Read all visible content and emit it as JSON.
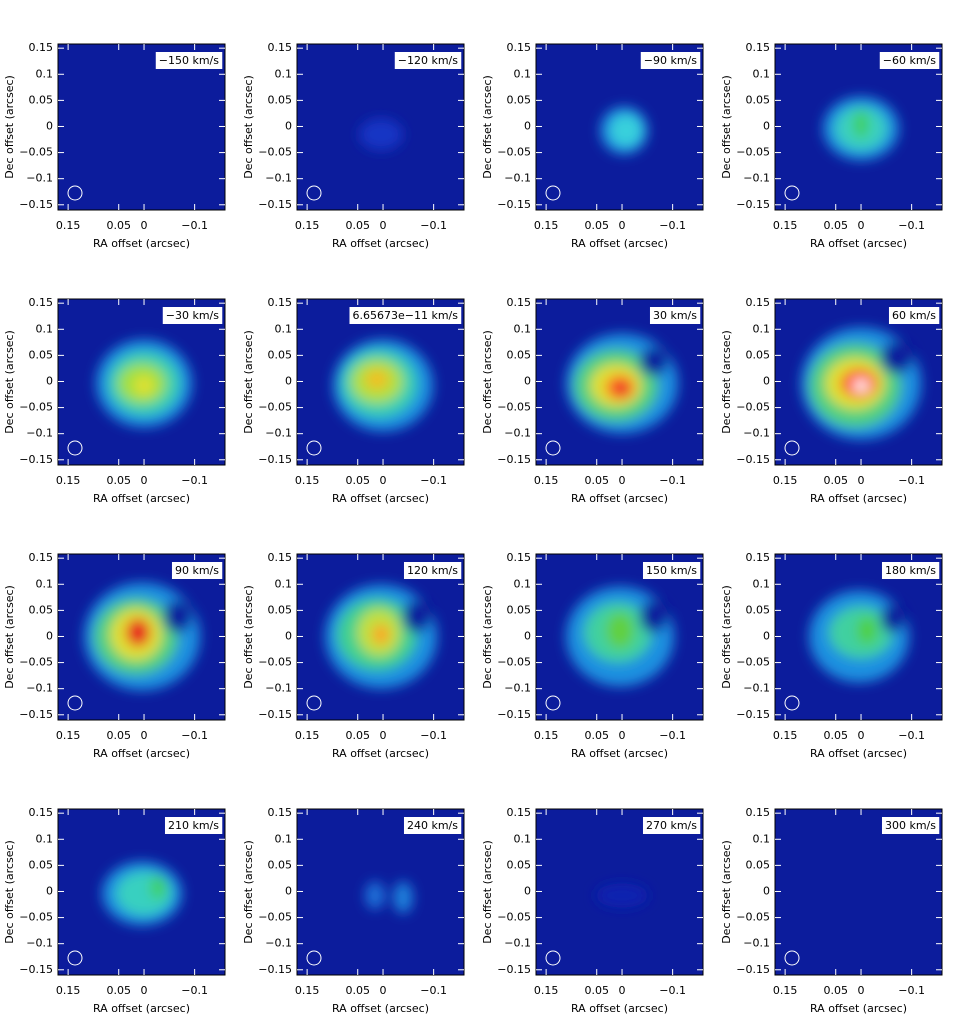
{
  "chart_data": [
    {
      "type": "channel-map",
      "label": "−150 km/s",
      "xlabel": "RA offset (arcsec)",
      "ylabel": "Dec offset (arcsec)",
      "xlim": [
        0.17,
        -0.16
      ],
      "ylim": [
        -0.16,
        0.158
      ],
      "xticks": [
        0.15,
        0.05,
        0,
        {
          "value": -0.1,
          "label": "−0.1"
        }
      ],
      "yticks": [
        0.15,
        0.1,
        0.05,
        0,
        {
          "value": -0.05,
          "label": "−0.05"
        },
        {
          "value": -0.1,
          "label": "−0.1"
        },
        {
          "value": -0.15,
          "label": "−0.15"
        }
      ]
    },
    {
      "type": "channel-map",
      "label": "−120 km/s",
      "xlabel": "RA offset (arcsec)",
      "ylabel": "Dec offset (arcsec)",
      "xlim": [
        0.17,
        -0.16
      ],
      "ylim": [
        -0.16,
        0.158
      ],
      "xticks": [
        0.15,
        0.05,
        0,
        {
          "value": -0.1,
          "label": "−0.1"
        }
      ],
      "yticks": [
        0.15,
        0.1,
        0.05,
        0,
        {
          "value": -0.05,
          "label": "−0.05"
        },
        {
          "value": -0.1,
          "label": "−0.1"
        },
        {
          "value": -0.15,
          "label": "−0.15"
        }
      ]
    },
    {
      "type": "channel-map",
      "label": "−90 km/s",
      "xlabel": "RA offset (arcsec)",
      "ylabel": "Dec offset (arcsec)",
      "xlim": [
        0.17,
        -0.16
      ],
      "ylim": [
        -0.16,
        0.158
      ],
      "xticks": [
        0.15,
        0.05,
        0,
        {
          "value": -0.1,
          "label": "−0.1"
        }
      ],
      "yticks": [
        0.15,
        0.1,
        0.05,
        0,
        {
          "value": -0.05,
          "label": "−0.05"
        },
        {
          "value": -0.1,
          "label": "−0.1"
        },
        {
          "value": -0.15,
          "label": "−0.15"
        }
      ]
    },
    {
      "type": "channel-map",
      "label": "−60 km/s",
      "xlabel": "RA offset (arcsec)",
      "ylabel": "Dec offset (arcsec)",
      "xlim": [
        0.17,
        -0.16
      ],
      "ylim": [
        -0.16,
        0.158
      ],
      "xticks": [
        0.15,
        0.05,
        0,
        {
          "value": -0.1,
          "label": "−0.1"
        }
      ],
      "yticks": [
        0.15,
        0.1,
        0.05,
        0,
        {
          "value": -0.05,
          "label": "−0.05"
        },
        {
          "value": -0.1,
          "label": "−0.1"
        },
        {
          "value": -0.15,
          "label": "−0.15"
        }
      ]
    },
    {
      "type": "channel-map",
      "label": "−30 km/s",
      "xlabel": "RA offset (arcsec)",
      "ylabel": "Dec offset (arcsec)",
      "xlim": [
        0.17,
        -0.16
      ],
      "ylim": [
        -0.16,
        0.158
      ],
      "xticks": [
        0.15,
        0.05,
        0,
        {
          "value": -0.1,
          "label": "−0.1"
        }
      ],
      "yticks": [
        0.15,
        0.1,
        0.05,
        0,
        {
          "value": -0.05,
          "label": "−0.05"
        },
        {
          "value": -0.1,
          "label": "−0.1"
        },
        {
          "value": -0.15,
          "label": "−0.15"
        }
      ]
    },
    {
      "type": "channel-map",
      "label": "6.65673e−11 km/s",
      "xlabel": "RA offset (arcsec)",
      "ylabel": "Dec offset (arcsec)",
      "xlim": [
        0.17,
        -0.16
      ],
      "ylim": [
        -0.16,
        0.158
      ],
      "xticks": [
        0.15,
        0.05,
        0,
        {
          "value": -0.1,
          "label": "−0.1"
        }
      ],
      "yticks": [
        0.15,
        0.1,
        0.05,
        0,
        {
          "value": -0.05,
          "label": "−0.05"
        },
        {
          "value": -0.1,
          "label": "−0.1"
        },
        {
          "value": -0.15,
          "label": "−0.15"
        }
      ]
    },
    {
      "type": "channel-map",
      "label": "30 km/s",
      "xlabel": "RA offset (arcsec)",
      "ylabel": "Dec offset (arcsec)",
      "xlim": [
        0.17,
        -0.16
      ],
      "ylim": [
        -0.16,
        0.158
      ],
      "xticks": [
        0.15,
        0.05,
        0,
        {
          "value": -0.1,
          "label": "−0.1"
        }
      ],
      "yticks": [
        0.15,
        0.1,
        0.05,
        0,
        {
          "value": -0.05,
          "label": "−0.05"
        },
        {
          "value": -0.1,
          "label": "−0.1"
        },
        {
          "value": -0.15,
          "label": "−0.15"
        }
      ]
    },
    {
      "type": "channel-map",
      "label": "60 km/s",
      "xlabel": "RA offset (arcsec)",
      "ylabel": "Dec offset (arcsec)",
      "xlim": [
        0.17,
        -0.16
      ],
      "ylim": [
        -0.16,
        0.158
      ],
      "xticks": [
        0.15,
        0.05,
        0,
        {
          "value": -0.1,
          "label": "−0.1"
        }
      ],
      "yticks": [
        0.15,
        0.1,
        0.05,
        0,
        {
          "value": -0.05,
          "label": "−0.05"
        },
        {
          "value": -0.1,
          "label": "−0.1"
        },
        {
          "value": -0.15,
          "label": "−0.15"
        }
      ]
    },
    {
      "type": "channel-map",
      "label": "90 km/s",
      "xlabel": "RA offset (arcsec)",
      "ylabel": "Dec offset (arcsec)",
      "xlim": [
        0.17,
        -0.16
      ],
      "ylim": [
        -0.16,
        0.158
      ],
      "xticks": [
        0.15,
        0.05,
        0,
        {
          "value": -0.1,
          "label": "−0.1"
        }
      ],
      "yticks": [
        0.15,
        0.1,
        0.05,
        0,
        {
          "value": -0.05,
          "label": "−0.05"
        },
        {
          "value": -0.1,
          "label": "−0.1"
        },
        {
          "value": -0.15,
          "label": "−0.15"
        }
      ]
    },
    {
      "type": "channel-map",
      "label": "120 km/s",
      "xlabel": "RA offset (arcsec)",
      "ylabel": "Dec offset (arcsec)",
      "xlim": [
        0.17,
        -0.16
      ],
      "ylim": [
        -0.16,
        0.158
      ],
      "xticks": [
        0.15,
        0.05,
        0,
        {
          "value": -0.1,
          "label": "−0.1"
        }
      ],
      "yticks": [
        0.15,
        0.1,
        0.05,
        0,
        {
          "value": -0.05,
          "label": "−0.05"
        },
        {
          "value": -0.1,
          "label": "−0.1"
        },
        {
          "value": -0.15,
          "label": "−0.15"
        }
      ]
    },
    {
      "type": "channel-map",
      "label": "150 km/s",
      "xlabel": "RA offset (arcsec)",
      "ylabel": "Dec offset (arcsec)",
      "xlim": [
        0.17,
        -0.16
      ],
      "ylim": [
        -0.16,
        0.158
      ],
      "xticks": [
        0.15,
        0.05,
        0,
        {
          "value": -0.1,
          "label": "−0.1"
        }
      ],
      "yticks": [
        0.15,
        0.1,
        0.05,
        0,
        {
          "value": -0.05,
          "label": "−0.05"
        },
        {
          "value": -0.1,
          "label": "−0.1"
        },
        {
          "value": -0.15,
          "label": "−0.15"
        }
      ]
    },
    {
      "type": "channel-map",
      "label": "180 km/s",
      "xlabel": "RA offset (arcsec)",
      "ylabel": "Dec offset (arcsec)",
      "xlim": [
        0.17,
        -0.16
      ],
      "ylim": [
        -0.16,
        0.158
      ],
      "xticks": [
        0.15,
        0.05,
        0,
        {
          "value": -0.1,
          "label": "−0.1"
        }
      ],
      "yticks": [
        0.15,
        0.1,
        0.05,
        0,
        {
          "value": -0.05,
          "label": "−0.05"
        },
        {
          "value": -0.1,
          "label": "−0.1"
        },
        {
          "value": -0.15,
          "label": "−0.15"
        }
      ]
    },
    {
      "type": "channel-map",
      "label": "210 km/s",
      "xlabel": "RA offset (arcsec)",
      "ylabel": "Dec offset (arcsec)",
      "xlim": [
        0.17,
        -0.16
      ],
      "ylim": [
        -0.16,
        0.158
      ],
      "xticks": [
        0.15,
        0.05,
        0,
        {
          "value": -0.1,
          "label": "−0.1"
        }
      ],
      "yticks": [
        0.15,
        0.1,
        0.05,
        0,
        {
          "value": -0.05,
          "label": "−0.05"
        },
        {
          "value": -0.1,
          "label": "−0.1"
        },
        {
          "value": -0.15,
          "label": "−0.15"
        }
      ]
    },
    {
      "type": "channel-map",
      "label": "240 km/s",
      "xlabel": "RA offset (arcsec)",
      "ylabel": "Dec offset (arcsec)",
      "xlim": [
        0.17,
        -0.16
      ],
      "ylim": [
        -0.16,
        0.158
      ],
      "xticks": [
        0.15,
        0.05,
        0,
        {
          "value": -0.1,
          "label": "−0.1"
        }
      ],
      "yticks": [
        0.15,
        0.1,
        0.05,
        0,
        {
          "value": -0.05,
          "label": "−0.05"
        },
        {
          "value": -0.1,
          "label": "−0.1"
        },
        {
          "value": -0.15,
          "label": "−0.15"
        }
      ]
    },
    {
      "type": "channel-map",
      "label": "270 km/s",
      "xlabel": "RA offset (arcsec)",
      "ylabel": "Dec offset (arcsec)",
      "xlim": [
        0.17,
        -0.16
      ],
      "ylim": [
        -0.16,
        0.158
      ],
      "xticks": [
        0.15,
        0.05,
        0,
        {
          "value": -0.1,
          "label": "−0.1"
        }
      ],
      "yticks": [
        0.15,
        0.1,
        0.05,
        0,
        {
          "value": -0.05,
          "label": "−0.05"
        },
        {
          "value": -0.1,
          "label": "−0.1"
        },
        {
          "value": -0.15,
          "label": "−0.15"
        }
      ]
    },
    {
      "type": "channel-map",
      "label": "300 km/s",
      "xlabel": "RA offset (arcsec)",
      "ylabel": "Dec offset (arcsec)",
      "xlim": [
        0.17,
        -0.16
      ],
      "ylim": [
        -0.16,
        0.158
      ],
      "xticks": [
        0.15,
        0.05,
        0,
        {
          "value": -0.1,
          "label": "−0.1"
        }
      ],
      "yticks": [
        0.15,
        0.1,
        0.05,
        0,
        {
          "value": -0.05,
          "label": "−0.05"
        },
        {
          "value": -0.1,
          "label": "−0.1"
        },
        {
          "value": -0.15,
          "label": "−0.15"
        }
      ]
    }
  ]
}
